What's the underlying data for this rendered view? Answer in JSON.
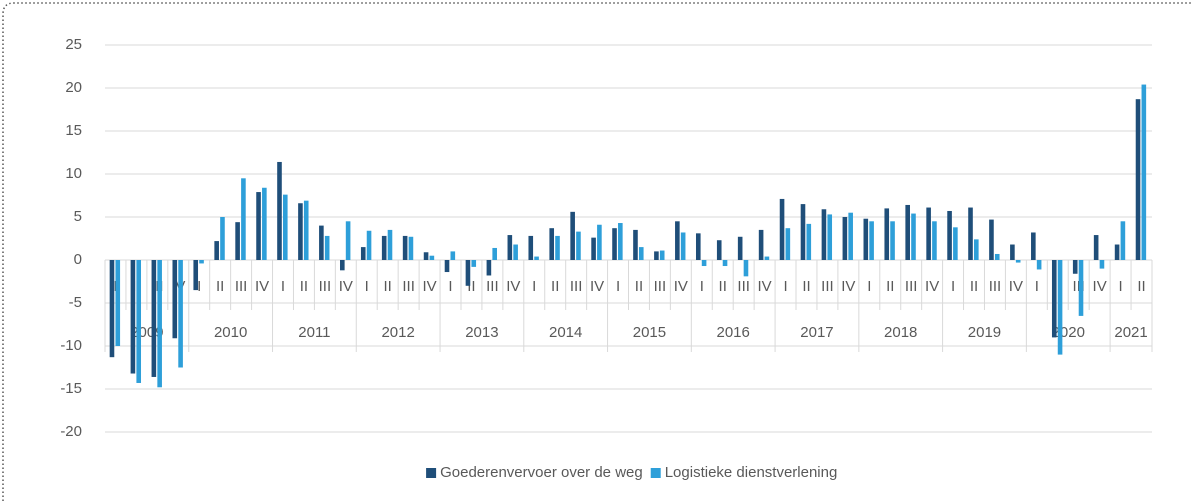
{
  "chart_data": {
    "type": "bar",
    "categories": [
      "I",
      "II",
      "III",
      "IV",
      "I",
      "II",
      "III",
      "IV",
      "I",
      "II",
      "III",
      "IV",
      "I",
      "II",
      "III",
      "IV",
      "I",
      "II",
      "III",
      "IV",
      "I",
      "II",
      "III",
      "IV",
      "I",
      "II",
      "III",
      "IV",
      "I",
      "II",
      "III",
      "IV",
      "I",
      "II",
      "III",
      "IV",
      "I",
      "II",
      "III",
      "IV",
      "I",
      "II",
      "III",
      "IV",
      "I",
      "II",
      "III",
      "IV",
      "I",
      "II"
    ],
    "years": [
      "2009",
      "2010",
      "2011",
      "2012",
      "2013",
      "2014",
      "2015",
      "2016",
      "2017",
      "2018",
      "2019",
      "2020",
      "2021"
    ],
    "series": [
      {
        "name": "Goederenvervoer over de weg",
        "color": "#1f4e79",
        "values": [
          -11.3,
          -13.2,
          -13.6,
          -9.1,
          -3.5,
          2.2,
          4.4,
          7.9,
          11.4,
          6.6,
          4.0,
          -1.2,
          1.5,
          2.8,
          2.8,
          0.9,
          -1.4,
          -3.0,
          -1.8,
          2.9,
          2.8,
          3.7,
          5.6,
          2.6,
          3.7,
          3.5,
          1.0,
          4.5,
          3.1,
          2.3,
          2.7,
          3.5,
          7.1,
          6.5,
          5.9,
          5.0,
          4.8,
          6.0,
          6.4,
          6.1,
          5.7,
          6.1,
          4.7,
          1.8,
          3.2,
          -9.0,
          -1.6,
          2.9,
          1.8,
          18.7
        ]
      },
      {
        "name": "Logistieke dienstverlening",
        "color": "#2e9fd9",
        "values": [
          -10.0,
          -14.3,
          -14.8,
          -12.5,
          -0.4,
          5.0,
          9.5,
          8.4,
          7.6,
          6.9,
          2.8,
          4.5,
          3.4,
          3.5,
          2.7,
          0.5,
          1.0,
          -0.8,
          1.4,
          1.8,
          0.4,
          2.8,
          3.3,
          4.1,
          4.3,
          1.5,
          1.1,
          3.2,
          -0.7,
          -0.7,
          -1.9,
          0.4,
          3.7,
          4.2,
          5.3,
          5.5,
          4.5,
          4.5,
          5.4,
          4.5,
          3.8,
          2.4,
          0.7,
          -0.3,
          -1.1,
          -11.0,
          -6.5,
          -1.0,
          4.5,
          20.4
        ]
      }
    ],
    "ylim": [
      -20,
      25
    ],
    "yticks": [
      -20,
      -15,
      -10,
      -5,
      0,
      5,
      10,
      15,
      20,
      25
    ],
    "grid": true,
    "legend": "bottom"
  }
}
